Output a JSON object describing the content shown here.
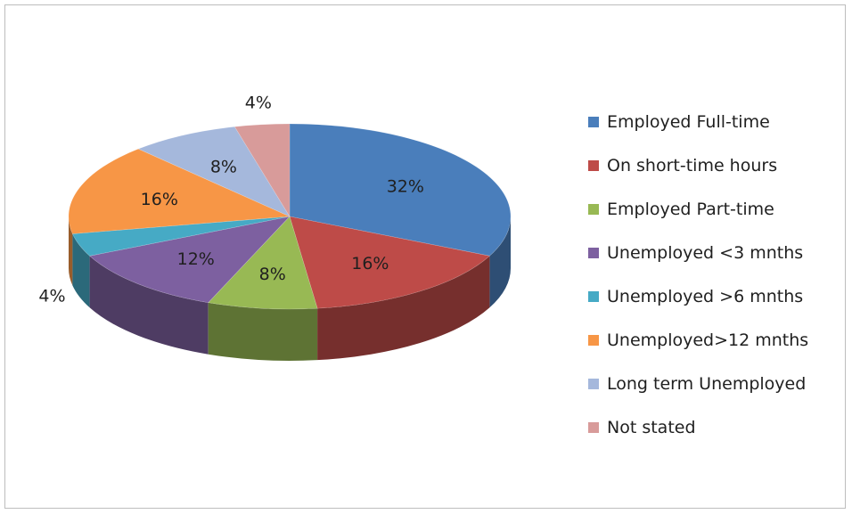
{
  "chart_data": {
    "type": "pie",
    "title": "",
    "categories": [
      "Employed Full-time",
      "On short-time hours",
      "Employed Part-time",
      "Unemployed <3 mnths",
      "Unemployed >6 mnths",
      "Unemployed>12 mnths",
      "Long term Unemployed",
      "Not stated"
    ],
    "values": [
      32,
      16,
      8,
      12,
      4,
      16,
      8,
      4
    ],
    "labels": [
      "32%",
      "16%",
      "8%",
      "12%",
      "4%",
      "16%",
      "8%",
      "4%"
    ],
    "colors": [
      "#4a7ebb",
      "#be4b48",
      "#98b954",
      "#7d60a0",
      "#46aac5",
      "#f79646",
      "#a5b8dc",
      "#d89b9a"
    ],
    "three_d": true,
    "legend_position": "right"
  }
}
